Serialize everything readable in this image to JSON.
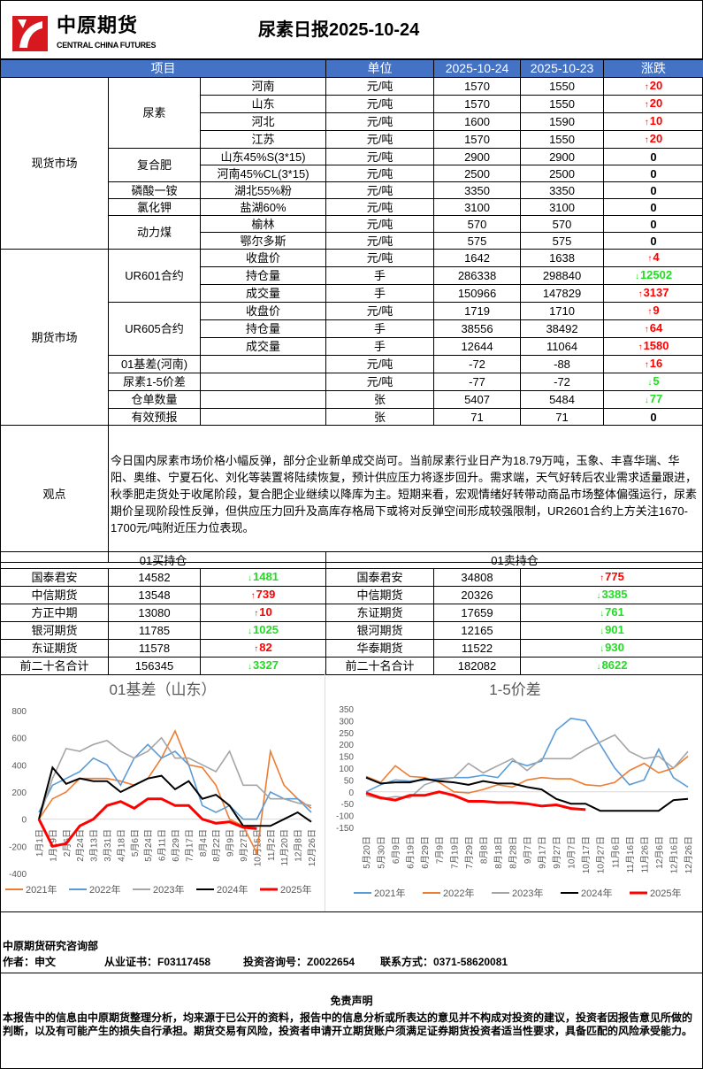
{
  "header": {
    "logo_cn": "中原期货",
    "logo_en": "CENTRAL CHINA FUTURES",
    "title": "尿素日报2025-10-24",
    "brand_color": "#d7191f"
  },
  "table_header": {
    "item": "项目",
    "unit": "单位",
    "date1": "2025-10-24",
    "date2": "2025-10-23",
    "change": "涨跌",
    "bg_color": "#4472c4"
  },
  "colors": {
    "up": "#ff0000",
    "down": "#22dd22",
    "flat": "#000000"
  },
  "spot_market": {
    "name": "现货市场",
    "groups": [
      {
        "name": "尿素",
        "items": [
          {
            "name": "河南",
            "unit": "元/吨",
            "d1": "1570",
            "d2": "1550",
            "chg": "20",
            "dir": "up"
          },
          {
            "name": "山东",
            "unit": "元/吨",
            "d1": "1570",
            "d2": "1550",
            "chg": "20",
            "dir": "up"
          },
          {
            "name": "河北",
            "unit": "元/吨",
            "d1": "1600",
            "d2": "1590",
            "chg": "10",
            "dir": "up"
          },
          {
            "name": "江苏",
            "unit": "元/吨",
            "d1": "1570",
            "d2": "1550",
            "chg": "20",
            "dir": "up"
          }
        ]
      },
      {
        "name": "复合肥",
        "items": [
          {
            "name": "山东45%S(3*15)",
            "unit": "元/吨",
            "d1": "2900",
            "d2": "2900",
            "chg": "0",
            "dir": "flat"
          },
          {
            "name": "河南45%CL(3*15)",
            "unit": "元/吨",
            "d1": "2500",
            "d2": "2500",
            "chg": "0",
            "dir": "flat"
          }
        ]
      },
      {
        "name": "磷酸一铵",
        "items": [
          {
            "name": "湖北55%粉",
            "unit": "元/吨",
            "d1": "3350",
            "d2": "3350",
            "chg": "0",
            "dir": "flat"
          }
        ]
      },
      {
        "name": "氯化钾",
        "items": [
          {
            "name": "盐湖60%",
            "unit": "元/吨",
            "d1": "3100",
            "d2": "3100",
            "chg": "0",
            "dir": "flat"
          }
        ]
      },
      {
        "name": "动力煤",
        "items": [
          {
            "name": "榆林",
            "unit": "元/吨",
            "d1": "570",
            "d2": "570",
            "chg": "0",
            "dir": "flat"
          },
          {
            "name": "鄂尔多斯",
            "unit": "元/吨",
            "d1": "575",
            "d2": "575",
            "chg": "0",
            "dir": "flat"
          }
        ]
      }
    ]
  },
  "futures_market": {
    "name": "期货市场",
    "groups": [
      {
        "name": "UR601合约",
        "items": [
          {
            "name": "收盘价",
            "unit": "元/吨",
            "d1": "1642",
            "d2": "1638",
            "chg": "4",
            "dir": "up"
          },
          {
            "name": "持仓量",
            "unit": "手",
            "d1": "286338",
            "d2": "298840",
            "chg": "12502",
            "dir": "down"
          },
          {
            "name": "成交量",
            "unit": "手",
            "d1": "150966",
            "d2": "147829",
            "chg": "3137",
            "dir": "up"
          }
        ]
      },
      {
        "name": "UR605合约",
        "items": [
          {
            "name": "收盘价",
            "unit": "元/吨",
            "d1": "1719",
            "d2": "1710",
            "chg": "9",
            "dir": "up"
          },
          {
            "name": "持仓量",
            "unit": "手",
            "d1": "38556",
            "d2": "38492",
            "chg": "64",
            "dir": "up"
          },
          {
            "name": "成交量",
            "unit": "手",
            "d1": "12644",
            "d2": "11064",
            "chg": "1580",
            "dir": "up"
          }
        ]
      },
      {
        "name": "01基差(河南)",
        "items": [
          {
            "name": "",
            "unit": "元/吨",
            "d1": "-72",
            "d2": "-88",
            "chg": "16",
            "dir": "up"
          }
        ]
      },
      {
        "name": "尿素1-5价差",
        "items": [
          {
            "name": "",
            "unit": "元/吨",
            "d1": "-77",
            "d2": "-72",
            "chg": "5",
            "dir": "down"
          }
        ]
      },
      {
        "name": "仓单数量",
        "items": [
          {
            "name": "",
            "unit": "张",
            "d1": "5407",
            "d2": "5484",
            "chg": "77",
            "dir": "down"
          }
        ]
      },
      {
        "name": "有效预报",
        "items": [
          {
            "name": "",
            "unit": "张",
            "d1": "71",
            "d2": "71",
            "chg": "0",
            "dir": "flat"
          }
        ]
      }
    ]
  },
  "view": {
    "label": "观点",
    "text": "今日国内尿素市场价格小幅反弹，部分企业新单成交尚可。当前尿素行业日产为18.79万吨，玉象、丰喜华瑞、华阳、奥维、宁夏石化、刘化等装置将陆续恢复，预计供应压力将逐步回升。需求端，天气好转后农业需求适量跟进，秋季肥走货处于收尾阶段，复合肥企业继续以降库为主。短期来看，宏观情绪好转带动商品市场整体偏强运行，尿素期价呈现阶段性反弹，但供应压力回升及高库存格局下或将对反弹空间形成较强限制，UR2601合约上方关注1670-1700元/吨附近压力位表现。"
  },
  "holdings": {
    "buy_title": "01买持仓",
    "sell_title": "01卖持仓",
    "buy": [
      {
        "name": "国泰君安",
        "value": "14582",
        "chg": "1481",
        "dir": "down"
      },
      {
        "name": "中信期货",
        "value": "13548",
        "chg": "739",
        "dir": "up"
      },
      {
        "name": "方正中期",
        "value": "13080",
        "chg": "10",
        "dir": "up"
      },
      {
        "name": "银河期货",
        "value": "11785",
        "chg": "1025",
        "dir": "down"
      },
      {
        "name": "东证期货",
        "value": "11578",
        "chg": "82",
        "dir": "up"
      },
      {
        "name": "前二十名合计",
        "value": "156345",
        "chg": "3327",
        "dir": "down"
      }
    ],
    "sell": [
      {
        "name": "国泰君安",
        "value": "34808",
        "chg": "775",
        "dir": "up"
      },
      {
        "name": "中信期货",
        "value": "20326",
        "chg": "3385",
        "dir": "down"
      },
      {
        "name": "东证期货",
        "value": "17659",
        "chg": "761",
        "dir": "down"
      },
      {
        "name": "银河期货",
        "value": "12165",
        "chg": "901",
        "dir": "down"
      },
      {
        "name": "华泰期货",
        "value": "11522",
        "chg": "930",
        "dir": "down"
      },
      {
        "name": "前二十名合计",
        "value": "182082",
        "chg": "8622",
        "dir": "down"
      }
    ]
  },
  "chart_data": [
    {
      "type": "line",
      "title": "01基差（山东）",
      "ylim": [
        -400,
        800
      ],
      "yticks": [
        800,
        600,
        400,
        200,
        0,
        -200,
        -400
      ],
      "legend": "bottom",
      "grid": false,
      "categories": [
        "1月1日",
        "1月19日",
        "2月6日",
        "2月24日",
        "3月13日",
        "3月31日",
        "4月18日",
        "5月6日",
        "5月24日",
        "6月11日",
        "6月29日",
        "7月17日",
        "8月4日",
        "8月22日",
        "9月9日",
        "9月27日",
        "10月15日",
        "11月2日",
        "11月20日",
        "12月8日",
        "12月26日"
      ],
      "series": [
        {
          "name": "2021年",
          "color": "#ed7d31",
          "values": [
            0,
            150,
            200,
            300,
            300,
            300,
            280,
            250,
            300,
            450,
            650,
            400,
            380,
            250,
            0,
            -50,
            -250,
            500,
            250,
            150,
            80
          ]
        },
        {
          "name": "2022年",
          "color": "#5b9bd5",
          "values": [
            50,
            250,
            300,
            350,
            450,
            400,
            250,
            450,
            550,
            450,
            500,
            400,
            100,
            50,
            100,
            0,
            0,
            200,
            150,
            150,
            50
          ]
        },
        {
          "name": "2023年",
          "color": "#a5a5a5",
          "values": [
            0,
            300,
            520,
            500,
            550,
            580,
            500,
            450,
            500,
            600,
            450,
            450,
            400,
            350,
            500,
            250,
            250,
            150,
            150,
            120,
            100
          ]
        },
        {
          "name": "2024年",
          "color": "#000000",
          "values": [
            0,
            380,
            260,
            300,
            280,
            280,
            200,
            250,
            300,
            320,
            220,
            280,
            150,
            180,
            100,
            -50,
            -50,
            -50,
            0,
            50,
            -20
          ]
        },
        {
          "name": "2025年",
          "color": "#ff0000",
          "values": [
            0,
            -200,
            -180,
            -50,
            0,
            100,
            130,
            80,
            150,
            150,
            100,
            100,
            0,
            -30,
            -20,
            -60,
            -70,
            null,
            null,
            null,
            null
          ]
        }
      ]
    },
    {
      "type": "line",
      "title": "1-5价差",
      "ylim": [
        -150,
        350
      ],
      "yticks": [
        350,
        300,
        250,
        200,
        150,
        100,
        50,
        0,
        -50,
        -100,
        -150
      ],
      "legend": "bottom",
      "grid": false,
      "categories": [
        "5月20日",
        "5月30日",
        "6月9日",
        "6月19日",
        "6月29日",
        "7月9日",
        "7月19日",
        "7月29日",
        "8月8日",
        "8月18日",
        "8月28日",
        "9月7日",
        "9月17日",
        "9月27日",
        "10月7日",
        "10月17日",
        "10月27日",
        "11月6日",
        "11月16日",
        "11月26日",
        "12月6日",
        "12月16日",
        "12月26日"
      ],
      "series": [
        {
          "name": "2021年",
          "color": "#5b9bd5",
          "values": [
            0,
            30,
            50,
            45,
            50,
            55,
            60,
            60,
            70,
            60,
            130,
            110,
            130,
            260,
            310,
            300,
            200,
            100,
            30,
            50,
            180,
            60,
            20
          ]
        },
        {
          "name": "2022年",
          "color": "#ed7d31",
          "values": [
            65,
            40,
            110,
            65,
            60,
            40,
            0,
            -5,
            10,
            30,
            20,
            50,
            60,
            55,
            55,
            30,
            25,
            40,
            90,
            120,
            80,
            100,
            150
          ]
        },
        {
          "name": "2023年",
          "color": "#a5a5a5",
          "values": [
            -15,
            -30,
            -20,
            -25,
            30,
            50,
            60,
            120,
            80,
            110,
            140,
            90,
            140,
            140,
            140,
            180,
            210,
            240,
            170,
            140,
            150,
            100,
            170
          ]
        },
        {
          "name": "2024年",
          "color": "#000000",
          "values": [
            60,
            35,
            40,
            40,
            55,
            45,
            40,
            30,
            45,
            35,
            35,
            20,
            10,
            -30,
            -50,
            -50,
            -80,
            -80,
            -80,
            -80,
            -80,
            -35,
            -30
          ]
        },
        {
          "name": "2025年",
          "color": "#ff0000",
          "values": [
            -5,
            -25,
            -35,
            -15,
            -15,
            0,
            -15,
            -40,
            -40,
            -45,
            -45,
            -50,
            -60,
            -55,
            -70,
            -75,
            null,
            null,
            null,
            null,
            null,
            null,
            null
          ]
        }
      ]
    }
  ],
  "footer": {
    "dept": "中原期货研究咨询部",
    "author": "作者：申文",
    "license": "从业证书：F03117458",
    "consult": "投资咨询号：Z0022654",
    "contact": "联系方式：0371-58620081"
  },
  "disclaimer": {
    "title": "免责声明",
    "text": "本报告中的信息由中原期货整理分析，均来源于已公开的资料，报告中的信息分析或所表达的意见并不构成对投资的建议，投资者因报告意见所做的判断，以及有可能产生的损失自行承担。期货交易有风险，投资者申请开立期货账户须满足证券期货投资者适当性要求，具备匹配的风险承受能力。"
  }
}
